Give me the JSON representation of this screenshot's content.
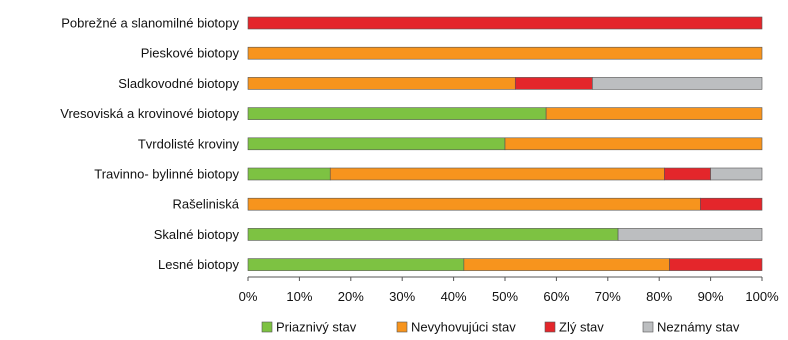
{
  "chart_data": {
    "type": "bar",
    "orientation": "horizontal",
    "stacked": "percent",
    "title": "",
    "xlabel": "",
    "ylabel": "",
    "xlim": [
      0,
      100
    ],
    "x_ticks": [
      "0%",
      "10%",
      "20%",
      "30%",
      "40%",
      "50%",
      "60%",
      "70%",
      "80%",
      "90%",
      "100%"
    ],
    "grid": false,
    "legend_position": "bottom",
    "categories": [
      "Pobrežné a slanomilné biotopy",
      "Pieskové biotopy",
      "Sladkovodné biotopy",
      "Vresoviská a krovinové biotopy",
      "Tvrdolisté kroviny",
      "Travinno- bylinné biotopy",
      "Rašeliniská",
      "Skalné biotopy",
      "Lesné biotopy"
    ],
    "series": [
      {
        "name": "Priaznivý stav",
        "color": "#7dc242",
        "values": [
          0,
          0,
          0,
          58,
          50,
          16,
          0,
          72,
          42
        ]
      },
      {
        "name": "Nevyhovujúci stav",
        "color": "#f7941d",
        "values": [
          0,
          100,
          52,
          42,
          50,
          65,
          88,
          0,
          40
        ]
      },
      {
        "name": "Zlý stav",
        "color": "#e4262b",
        "values": [
          100,
          0,
          15,
          0,
          0,
          9,
          12,
          0,
          18
        ]
      },
      {
        "name": "Neznámy stav",
        "color": "#bcbec0",
        "values": [
          0,
          0,
          33,
          0,
          0,
          10,
          0,
          28,
          0
        ]
      }
    ]
  }
}
